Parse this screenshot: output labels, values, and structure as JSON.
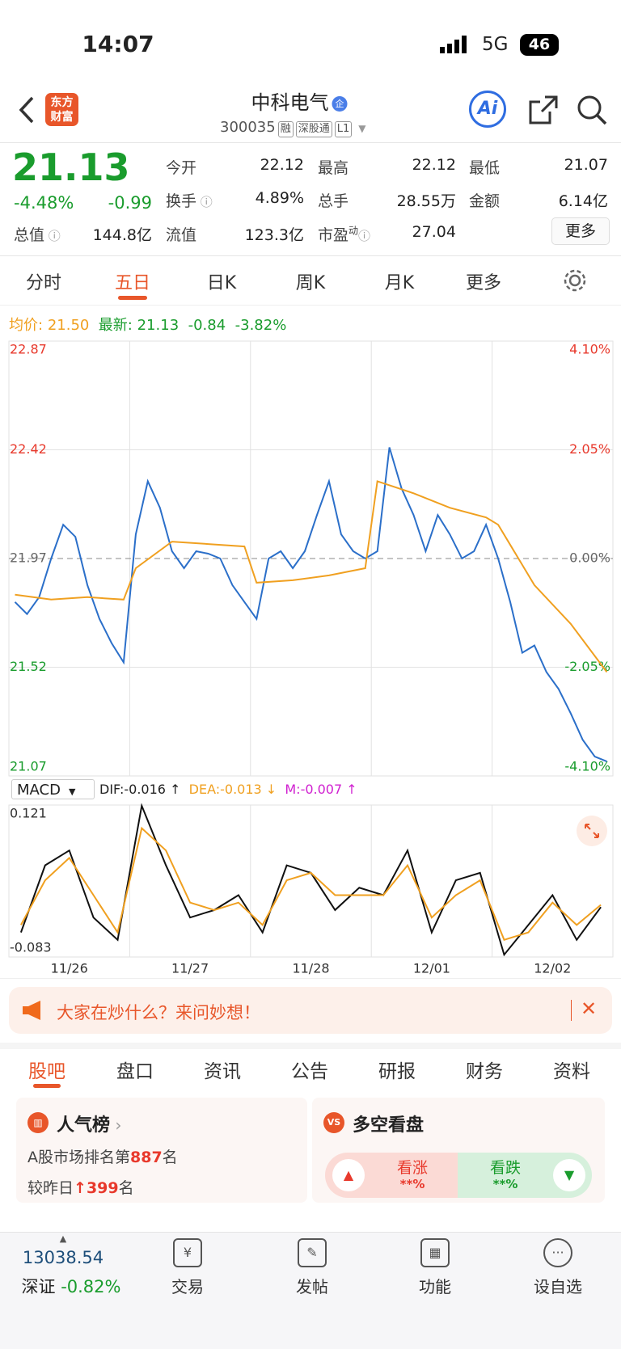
{
  "status_bar": {
    "time": "14:07",
    "network": "5G",
    "battery": "46"
  },
  "header": {
    "logo": [
      "东方",
      "财富"
    ],
    "title": "中科电气",
    "title_badge": "企",
    "code": "300035",
    "badges": [
      "融",
      "深股通",
      "L1"
    ],
    "ai": "Ai"
  },
  "quote": {
    "price": "21.13",
    "change_pct": "-4.48%",
    "change": "-0.99",
    "market_cap": {
      "label": "总值",
      "value": "144.8亿"
    },
    "fields": [
      {
        "label": "今开",
        "value": "22.12"
      },
      {
        "label": "最高",
        "value": "22.12"
      },
      {
        "label": "最低",
        "value": "21.07"
      },
      {
        "label": "换手",
        "value": "4.89%"
      },
      {
        "label": "总手",
        "value": "28.55万"
      },
      {
        "label": "金额",
        "value": "6.14亿"
      },
      {
        "label": "流值",
        "value": "123.3亿"
      },
      {
        "label": "市盈",
        "label_sup": "动",
        "value": "27.04"
      }
    ],
    "more": "更多"
  },
  "tabs": {
    "items": [
      "分时",
      "五日",
      "日K",
      "周K",
      "月K",
      "更多"
    ],
    "active": 1
  },
  "chart_data": [
    {
      "type": "line",
      "summary": {
        "avg": "21.50",
        "last": "21.13",
        "change": "-0.84",
        "change_pct": "-3.82%"
      },
      "xlim": [
        -0.5,
        49.5
      ],
      "xticks": [
        {
          "value": 4.5,
          "label": "11/26"
        },
        {
          "value": 14.5,
          "label": "11/27"
        },
        {
          "value": 24.5,
          "label": "11/28"
        },
        {
          "value": 34.5,
          "label": "12/01"
        },
        {
          "value": 44.5,
          "label": "12/02"
        }
      ],
      "ylim": [
        21.07,
        22.87
      ],
      "yticks": [
        22.87,
        22.42,
        21.97,
        21.52,
        21.07
      ],
      "y2lim": [
        -4.1,
        4.1
      ],
      "y2ticks": [
        {
          "value": 4.1,
          "label": "4.10%"
        },
        {
          "value": 2.05,
          "label": "2.05%"
        },
        {
          "value": 0,
          "label": "0.00%"
        },
        {
          "value": -2.05,
          "label": "-2.05%"
        },
        {
          "value": -4.1,
          "label": "-4.10%"
        }
      ],
      "series": [
        {
          "name": "最新:",
          "color": "#2b6fc9",
          "values": [
            21.79,
            21.74,
            21.81,
            21.97,
            22.11,
            22.06,
            21.86,
            21.72,
            21.62,
            21.54,
            22.07,
            22.29,
            22.18,
            22.0,
            21.93,
            22.0,
            21.99,
            21.97,
            21.86,
            21.79,
            21.72,
            21.97,
            22.0,
            21.93,
            22.0,
            22.15,
            22.29,
            22.07,
            22.0,
            21.97,
            22.0,
            22.43,
            22.26,
            22.15,
            22.0,
            22.15,
            22.07,
            21.97,
            22.0,
            22.11,
            21.97,
            21.79,
            21.58,
            21.61,
            21.5,
            21.43,
            21.33,
            21.22,
            21.15,
            21.13
          ]
        },
        {
          "name": "均价:",
          "color": "#f0a020",
          "x": [
            0,
            3,
            6,
            9,
            10,
            13,
            16,
            19,
            20,
            23,
            26,
            29,
            30,
            33,
            36,
            39,
            40,
            43,
            46,
            49
          ],
          "values": [
            21.82,
            21.8,
            21.81,
            21.8,
            21.93,
            22.04,
            22.03,
            22.02,
            21.87,
            21.88,
            21.9,
            21.93,
            22.29,
            22.24,
            22.18,
            22.14,
            22.11,
            21.86,
            21.7,
            21.5
          ]
        }
      ]
    },
    {
      "type": "line",
      "indicator": "MACD",
      "xlim": [
        -0.5,
        24.5
      ],
      "ylim": [
        -0.083,
        0.121
      ],
      "yticks": [
        0.121,
        -0.083
      ],
      "m_legend": {
        "name": "M:",
        "label": "-0.007 ↑"
      },
      "series": [
        {
          "name": "DIF:",
          "value_label": "-0.016 ↑",
          "color": "#111111",
          "values": [
            -0.05,
            0.04,
            0.06,
            -0.03,
            -0.06,
            0.12,
            0.04,
            -0.03,
            -0.02,
            0.0,
            -0.05,
            0.04,
            0.03,
            -0.02,
            0.01,
            0.0,
            0.06,
            -0.05,
            0.02,
            0.03,
            -0.08,
            -0.04,
            0.0,
            -0.06,
            -0.016
          ]
        },
        {
          "name": "DEA:",
          "value_label": "-0.013 ↓",
          "color": "#f0a020",
          "values": [
            -0.04,
            0.02,
            0.05,
            0.0,
            -0.05,
            0.09,
            0.06,
            -0.01,
            -0.02,
            -0.01,
            -0.04,
            0.02,
            0.03,
            0.0,
            0.0,
            0.0,
            0.04,
            -0.03,
            0.0,
            0.02,
            -0.06,
            -0.05,
            -0.01,
            -0.04,
            -0.013
          ]
        }
      ]
    }
  ],
  "banner": {
    "text": "大家在炒什么？来问妙想！"
  },
  "content_tabs": {
    "items": [
      "股吧",
      "盘口",
      "资讯",
      "公告",
      "研报",
      "财务",
      "资料"
    ],
    "active": 0
  },
  "cards": {
    "popularity": {
      "title": "人气榜",
      "rank_prefix": "A股市场排名第",
      "rank": "887",
      "rank_suffix": "名",
      "change_prefix": "较昨日",
      "change": "399",
      "change_suffix": "名"
    },
    "sentiment": {
      "title": "多空看盘",
      "up": "看涨",
      "up_pct": "**%",
      "down": "看跌",
      "down_pct": "**%"
    }
  },
  "nav": {
    "index": {
      "value": "13038.54",
      "name": "深证",
      "change_pct": "-0.82%"
    },
    "items": [
      "交易",
      "发帖",
      "功能",
      "设自选"
    ]
  }
}
